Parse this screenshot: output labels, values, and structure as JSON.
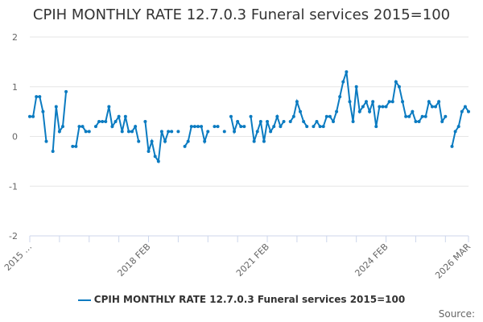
{
  "chart_data": {
    "type": "line",
    "title": "CPIH MONTHLY RATE 12.7.0.3 Funeral services 2015=100",
    "xlabel": "",
    "ylabel": "",
    "ylim": [
      -2,
      2
    ],
    "y_ticks": [
      "2",
      "1",
      "0",
      "-1",
      "-2"
    ],
    "x_tick_labels": [
      "2015 …",
      "2018 FEB",
      "2021 FEB",
      "2024 FEB",
      "2026 MAR"
    ],
    "grid": "horizontal",
    "legend": "bottom",
    "color": "#0b7bc1",
    "x": [
      "2015 FEB",
      "2015 MAR",
      "2015 APR",
      "2015 MAY",
      "2015 JUN",
      "2015 JUL",
      "2015 AUG",
      "2015 SEP",
      "2015 OCT",
      "2015 NOV",
      "2015 DEC",
      "2016 JAN",
      "2016 FEB",
      "2016 MAR",
      "2016 APR",
      "2016 MAY",
      "2016 JUN",
      "2016 JUL",
      "2016 AUG",
      "2016 SEP",
      "2016 OCT",
      "2016 NOV",
      "2016 DEC",
      "2017 JAN",
      "2017 FEB",
      "2017 MAR",
      "2017 APR",
      "2017 MAY",
      "2017 JUN",
      "2017 JUL",
      "2017 AUG",
      "2017 SEP",
      "2017 OCT",
      "2017 NOV",
      "2017 DEC",
      "2018 JAN",
      "2018 FEB",
      "2018 MAR",
      "2018 APR",
      "2018 MAY",
      "2018 JUN",
      "2018 JUL",
      "2018 AUG",
      "2018 SEP",
      "2018 OCT",
      "2018 NOV",
      "2018 DEC",
      "2019 JAN",
      "2019 FEB",
      "2019 MAR",
      "2019 APR",
      "2019 MAY",
      "2019 JUN",
      "2019 JUL",
      "2019 AUG",
      "2019 SEP",
      "2019 OCT",
      "2019 NOV",
      "2019 DEC",
      "2020 JAN",
      "2020 FEB",
      "2020 MAR",
      "2020 APR",
      "2020 MAY",
      "2020 JUN",
      "2020 JUL",
      "2020 AUG",
      "2020 SEP",
      "2020 OCT",
      "2020 NOV",
      "2020 DEC",
      "2021 JAN",
      "2021 FEB",
      "2021 MAR",
      "2021 APR",
      "2021 MAY",
      "2021 JUN",
      "2021 JUL",
      "2021 AUG",
      "2021 SEP",
      "2021 OCT",
      "2021 NOV",
      "2021 DEC",
      "2022 JAN",
      "2022 FEB",
      "2022 MAR",
      "2022 APR",
      "2022 MAY",
      "2022 JUN",
      "2022 JUL",
      "2022 AUG",
      "2022 SEP",
      "2022 OCT",
      "2022 NOV",
      "2022 DEC",
      "2023 JAN",
      "2023 FEB",
      "2023 MAR",
      "2023 APR",
      "2023 MAY",
      "2023 JUN",
      "2023 JUL",
      "2023 AUG",
      "2023 SEP",
      "2023 OCT",
      "2023 NOV",
      "2023 DEC",
      "2024 JAN",
      "2024 FEB",
      "2024 MAR",
      "2024 APR",
      "2024 MAY",
      "2024 JUN",
      "2024 JUL",
      "2024 AUG",
      "2024 SEP",
      "2024 OCT",
      "2024 NOV",
      "2024 DEC",
      "2025 JAN",
      "2025 FEB",
      "2025 MAR",
      "2025 APR",
      "2025 MAY",
      "2025 JUN",
      "2025 JUL",
      "2025 AUG",
      "2025 SEP",
      "2025 OCT",
      "2025 NOV",
      "2025 DEC",
      "2026 JAN",
      "2026 FEB",
      "2026 MAR"
    ],
    "series": [
      {
        "name": "CPIH MONTHLY RATE 12.7.0.3 Funeral services 2015=100",
        "values": [
          0.4,
          0.4,
          0.8,
          0.8,
          0.5,
          -0.1,
          null,
          -0.3,
          0.6,
          0.1,
          0.2,
          0.9,
          null,
          -0.2,
          -0.2,
          0.2,
          0.2,
          0.1,
          0.1,
          null,
          0.2,
          0.3,
          0.3,
          0.3,
          0.6,
          0.2,
          0.3,
          0.4,
          0.1,
          0.4,
          0.1,
          0.1,
          0.2,
          -0.1,
          null,
          0.3,
          -0.3,
          -0.1,
          -0.4,
          -0.5,
          0.1,
          -0.1,
          0.1,
          0.1,
          null,
          0.1,
          null,
          -0.2,
          -0.1,
          0.2,
          0.2,
          0.2,
          0.2,
          -0.1,
          0.1,
          null,
          0.2,
          0.2,
          null,
          0.1,
          null,
          0.4,
          0.1,
          0.3,
          0.2,
          0.2,
          null,
          0.4,
          -0.1,
          0.1,
          0.3,
          -0.1,
          0.3,
          0.1,
          0.2,
          0.4,
          0.2,
          0.3,
          null,
          0.3,
          0.4,
          0.7,
          0.5,
          0.3,
          0.2,
          null,
          0.2,
          0.3,
          0.2,
          0.2,
          0.4,
          0.4,
          0.3,
          0.5,
          0.8,
          1.1,
          1.3,
          0.7,
          0.3,
          1.0,
          0.5,
          0.6,
          0.7,
          0.5,
          0.7,
          0.2,
          0.6,
          0.6,
          0.6,
          0.7,
          0.7,
          1.1,
          1.0,
          0.7,
          0.4,
          0.4,
          0.5,
          0.3,
          0.3,
          0.4,
          0.4,
          0.7,
          0.6,
          0.6,
          0.7,
          0.3,
          0.4,
          null,
          -0.2,
          0.1,
          0.2,
          0.5,
          0.6,
          0.5
        ]
      }
    ]
  },
  "source_label": "Source:"
}
